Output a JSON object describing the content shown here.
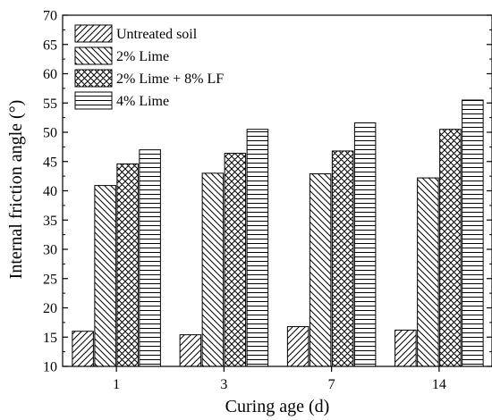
{
  "chart_data": {
    "type": "bar",
    "xlabel": "Curing age (d)",
    "ylabel": "Internal friction angle (°)",
    "ylim": [
      10,
      70
    ],
    "ytick_step": 5,
    "grid": false,
    "legend_position": "top-left",
    "categories": [
      "1",
      "3",
      "7",
      "14"
    ],
    "series": [
      {
        "name": "Untreated soil",
        "pattern": "diagonal-up",
        "values": [
          16.0,
          15.4,
          16.8,
          16.2
        ]
      },
      {
        "name": "2% Lime",
        "pattern": "diagonal-down",
        "values": [
          40.9,
          43.0,
          42.9,
          42.2
        ]
      },
      {
        "name": "2% Lime + 8% LF",
        "pattern": "crosshatch",
        "values": [
          44.6,
          46.4,
          46.8,
          50.5
        ]
      },
      {
        "name": "4% Lime",
        "pattern": "horizontal",
        "values": [
          47.0,
          50.5,
          51.6,
          55.5
        ]
      }
    ]
  }
}
